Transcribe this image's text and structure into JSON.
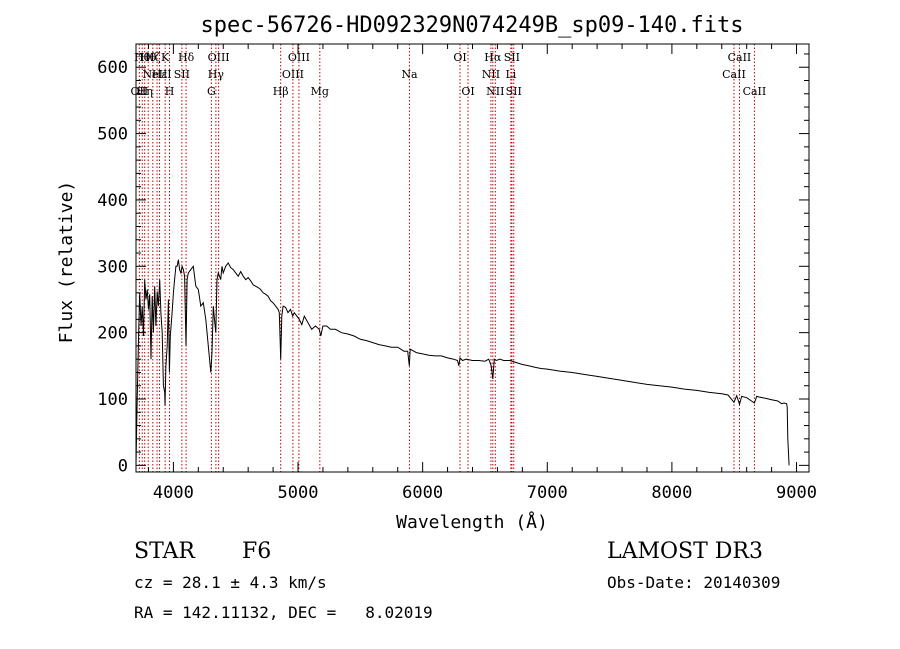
{
  "chart_data": {
    "type": "line",
    "title": "spec-56726-HD092329N074249B_sp09-140.fits",
    "xlabel": "Wavelength (Å)",
    "ylabel": "Flux (relative)",
    "xlim": [
      3700,
      9100
    ],
    "ylim": [
      -10,
      635
    ],
    "xticks": [
      4000,
      5000,
      6000,
      7000,
      8000,
      9000
    ],
    "yticks": [
      0,
      100,
      200,
      300,
      400,
      500,
      600
    ],
    "series": [
      {
        "name": "flux",
        "x": [
          3700,
          3710,
          3720,
          3730,
          3740,
          3750,
          3760,
          3770,
          3780,
          3790,
          3800,
          3810,
          3820,
          3830,
          3840,
          3850,
          3860,
          3870,
          3880,
          3890,
          3900,
          3910,
          3920,
          3930,
          3933,
          3940,
          3950,
          3960,
          3968,
          3975,
          3990,
          4000,
          4010,
          4020,
          4030,
          4040,
          4050,
          4060,
          4070,
          4080,
          4090,
          4101,
          4110,
          4120,
          4140,
          4160,
          4180,
          4200,
          4220,
          4240,
          4260,
          4280,
          4300,
          4310,
          4320,
          4330,
          4340,
          4350,
          4360,
          4370,
          4380,
          4390,
          4400,
          4420,
          4440,
          4460,
          4480,
          4500,
          4520,
          4540,
          4560,
          4580,
          4600,
          4620,
          4640,
          4660,
          4680,
          4700,
          4720,
          4740,
          4760,
          4780,
          4800,
          4820,
          4840,
          4850,
          4861,
          4870,
          4880,
          4900,
          4920,
          4940,
          4957,
          4970,
          4990,
          5010,
          5030,
          5050,
          5080,
          5110,
          5140,
          5170,
          5183,
          5200,
          5230,
          5260,
          5300,
          5350,
          5400,
          5450,
          5500,
          5550,
          5600,
          5650,
          5700,
          5750,
          5800,
          5850,
          5880,
          5893,
          5900,
          5920,
          5950,
          6000,
          6050,
          6100,
          6150,
          6200,
          6250,
          6280,
          6290,
          6300,
          6320,
          6350,
          6400,
          6450,
          6500,
          6530,
          6550,
          6563,
          6575,
          6590,
          6620,
          6650,
          6700,
          6750,
          6800,
          6850,
          6900,
          6950,
          7000,
          7100,
          7200,
          7300,
          7400,
          7500,
          7600,
          7700,
          7800,
          7900,
          8000,
          8100,
          8200,
          8300,
          8400,
          8450,
          8498,
          8520,
          8542,
          8560,
          8600,
          8662,
          8680,
          8700,
          8750,
          8800,
          8850,
          8880,
          8900,
          8920,
          8925,
          8930,
          8940
        ],
        "values": [
          0,
          100,
          190,
          260,
          210,
          240,
          195,
          280,
          250,
          265,
          235,
          258,
          160,
          255,
          200,
          270,
          210,
          262,
          240,
          280,
          230,
          200,
          120,
          110,
          90,
          150,
          180,
          250,
          140,
          195,
          230,
          260,
          280,
          300,
          300,
          310,
          295,
          290,
          300,
          295,
          285,
          180,
          280,
          290,
          295,
          300,
          270,
          265,
          240,
          245,
          220,
          180,
          140,
          170,
          240,
          220,
          200,
          280,
          290,
          285,
          280,
          300,
          290,
          300,
          305,
          298,
          295,
          290,
          285,
          292,
          285,
          280,
          283,
          278,
          272,
          270,
          268,
          265,
          260,
          258,
          255,
          248,
          245,
          240,
          235,
          230,
          160,
          225,
          240,
          238,
          230,
          235,
          225,
          230,
          225,
          220,
          212,
          225,
          215,
          205,
          210,
          205,
          195,
          210,
          210,
          205,
          205,
          200,
          198,
          195,
          190,
          188,
          185,
          182,
          180,
          178,
          178,
          172,
          172,
          150,
          175,
          173,
          170,
          168,
          166,
          165,
          165,
          162,
          160,
          158,
          150,
          162,
          158,
          160,
          158,
          158,
          157,
          160,
          150,
          130,
          160,
          158,
          160,
          158,
          158,
          155,
          152,
          150,
          148,
          146,
          145,
          142,
          140,
          137,
          134,
          131,
          128,
          125,
          122,
          120,
          118,
          115,
          113,
          110,
          108,
          106,
          95,
          105,
          92,
          104,
          102,
          94,
          104,
          103,
          101,
          99,
          97,
          93,
          94,
          93,
          88,
          40,
          0
        ]
      }
    ],
    "lines": [
      {
        "x": 3727,
        "text": "OII",
        "row": 2
      },
      {
        "x": 3750,
        "text": "Hθ",
        "row": 0
      },
      {
        "x": 3770,
        "text": "Hη",
        "row": 2
      },
      {
        "x": 3798,
        "text": "Hθ",
        "row": 0
      },
      {
        "x": 3835,
        "text": "Hζ",
        "row": 0
      },
      {
        "x": 3869,
        "text": "NeIII",
        "row": 1
      },
      {
        "x": 3889,
        "text": "Hε",
        "row": 1
      },
      {
        "x": 3934,
        "text": "K",
        "row": 0
      },
      {
        "x": 3969,
        "text": "H",
        "row": 2
      },
      {
        "x": 4068,
        "text": "SII",
        "row": 1
      },
      {
        "x": 4102,
        "text": "Hδ",
        "row": 0
      },
      {
        "x": 4305,
        "text": "G",
        "row": 2
      },
      {
        "x": 4341,
        "text": "Hγ",
        "row": 1
      },
      {
        "x": 4363,
        "text": "OIII",
        "row": 0
      },
      {
        "x": 4861,
        "text": "Hβ",
        "row": 2
      },
      {
        "x": 4959,
        "text": "OIII",
        "row": 1
      },
      {
        "x": 5007,
        "text": "OIII",
        "row": 0
      },
      {
        "x": 5175,
        "text": "Mg",
        "row": 2
      },
      {
        "x": 5894,
        "text": "Na",
        "row": 1
      },
      {
        "x": 6300,
        "text": "OI",
        "row": 0
      },
      {
        "x": 6364,
        "text": "OI",
        "row": 2
      },
      {
        "x": 6548,
        "text": "NII",
        "row": 1
      },
      {
        "x": 6563,
        "text": "Hα",
        "row": 0
      },
      {
        "x": 6583,
        "text": "NII",
        "row": 2
      },
      {
        "x": 6708,
        "text": "Li",
        "row": 1
      },
      {
        "x": 6716,
        "text": "SII",
        "row": 0
      },
      {
        "x": 6731,
        "text": "SII",
        "row": 2
      },
      {
        "x": 8498,
        "text": "CaII",
        "row": 1
      },
      {
        "x": 8542,
        "text": "CaII",
        "row": 0
      },
      {
        "x": 8662,
        "text": "CaII",
        "row": 2
      }
    ]
  },
  "info": {
    "class_label": "STAR",
    "subclass": "F6",
    "cz_line": "cz = 28.1 ± 4.3 km/s",
    "coords_line": "RA = 142.11132, DEC =   8.02019",
    "survey": "LAMOST DR3",
    "obs_date_line": "Obs-Date: 20140309"
  },
  "colors": {
    "line_marker": "#c00000",
    "axes": "#000000",
    "spectrum": "#000000"
  }
}
